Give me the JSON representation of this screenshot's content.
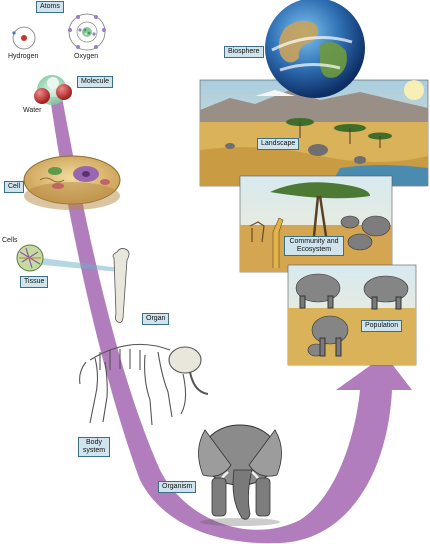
{
  "labels": {
    "atoms": "Atoms",
    "hydrogen": "Hydrogen",
    "oxygen": "Oxygen",
    "molecule": "Molecule",
    "water": "Water",
    "cell": "Cell",
    "cells": "Cells",
    "tissue": "Tissue",
    "organ": "Organ",
    "body_system_line1": "Body",
    "body_system_line2": "system",
    "organism": "Organism",
    "population": "Population",
    "community_line1": "Community and",
    "community_line2": "Ecosystem",
    "landscape": "Landscape",
    "biosphere": "Biosphere"
  },
  "colors": {
    "arrow": "#a96fb5",
    "label_fill": "#cfe4ec",
    "label_border": "#3d6f84",
    "savanna": "#d9b25a",
    "sky": "#cfe3ea"
  }
}
